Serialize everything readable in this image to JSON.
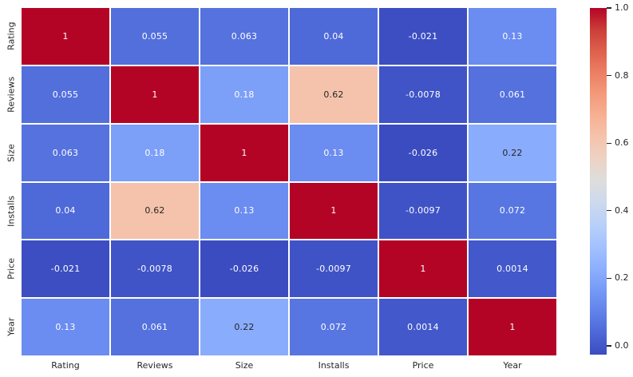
{
  "figure": {
    "background": "#ffffff",
    "tick_label_color": "#262626"
  },
  "chart_data": {
    "type": "heatmap",
    "title": "",
    "xlabel": "",
    "ylabel": "",
    "categories": [
      "Rating",
      "Reviews",
      "Size",
      "Installs",
      "Price",
      "Year"
    ],
    "matrix": [
      [
        1,
        0.055,
        0.063,
        0.04,
        -0.021,
        0.13
      ],
      [
        0.055,
        1,
        0.18,
        0.62,
        -0.0078,
        0.061
      ],
      [
        0.063,
        0.18,
        1,
        0.13,
        -0.026,
        0.22
      ],
      [
        0.04,
        0.62,
        0.13,
        1,
        -0.0097,
        0.072
      ],
      [
        -0.021,
        -0.0078,
        -0.026,
        -0.0097,
        1,
        0.0014
      ],
      [
        0.13,
        0.061,
        0.22,
        0.072,
        0.0014,
        1
      ]
    ],
    "matrix_labels": [
      [
        "1",
        "0.055",
        "0.063",
        "0.04",
        "-0.021",
        "0.13"
      ],
      [
        "0.055",
        "1",
        "0.18",
        "0.62",
        "-0.0078",
        "0.061"
      ],
      [
        "0.063",
        "0.18",
        "1",
        "0.13",
        "-0.026",
        "0.22"
      ],
      [
        "0.04",
        "0.62",
        "0.13",
        "1",
        "-0.0097",
        "0.072"
      ],
      [
        "-0.021",
        "-0.0078",
        "-0.026",
        "-0.0097",
        "1",
        "0.0014"
      ],
      [
        "0.13",
        "0.061",
        "0.22",
        "0.072",
        "0.0014",
        "1"
      ]
    ],
    "vmin": -0.026,
    "vmax": 1.0,
    "colormap": "coolwarm",
    "colormap_stops": [
      [
        0.0,
        "#3b4cc0"
      ],
      [
        0.0625,
        "#4d68d7"
      ],
      [
        0.125,
        "#6282ea"
      ],
      [
        0.1875,
        "#779af7"
      ],
      [
        0.25,
        "#8db0fe"
      ],
      [
        0.3125,
        "#a3c2ff"
      ],
      [
        0.375,
        "#b8d0f9"
      ],
      [
        0.4375,
        "#ccd9ee"
      ],
      [
        0.5,
        "#dddddd"
      ],
      [
        0.5625,
        "#ecd3c5"
      ],
      [
        0.625,
        "#f5c4ad"
      ],
      [
        0.6875,
        "#f7b194"
      ],
      [
        0.75,
        "#f49a7b"
      ],
      [
        0.8125,
        "#ec7f63"
      ],
      [
        0.875,
        "#de604d"
      ],
      [
        0.9375,
        "#cb3e38"
      ],
      [
        1.0,
        "#b40426"
      ]
    ],
    "cell_text_color_dark_bg": "#ffffff",
    "cell_text_color_light_bg": "#262626",
    "grid_line_color": "#ffffff",
    "legend_position": "right-colorbar",
    "colorbar": {
      "ticks": [
        "1.0",
        "0.8",
        "0.6",
        "0.4",
        "0.2",
        "0.0"
      ]
    }
  }
}
